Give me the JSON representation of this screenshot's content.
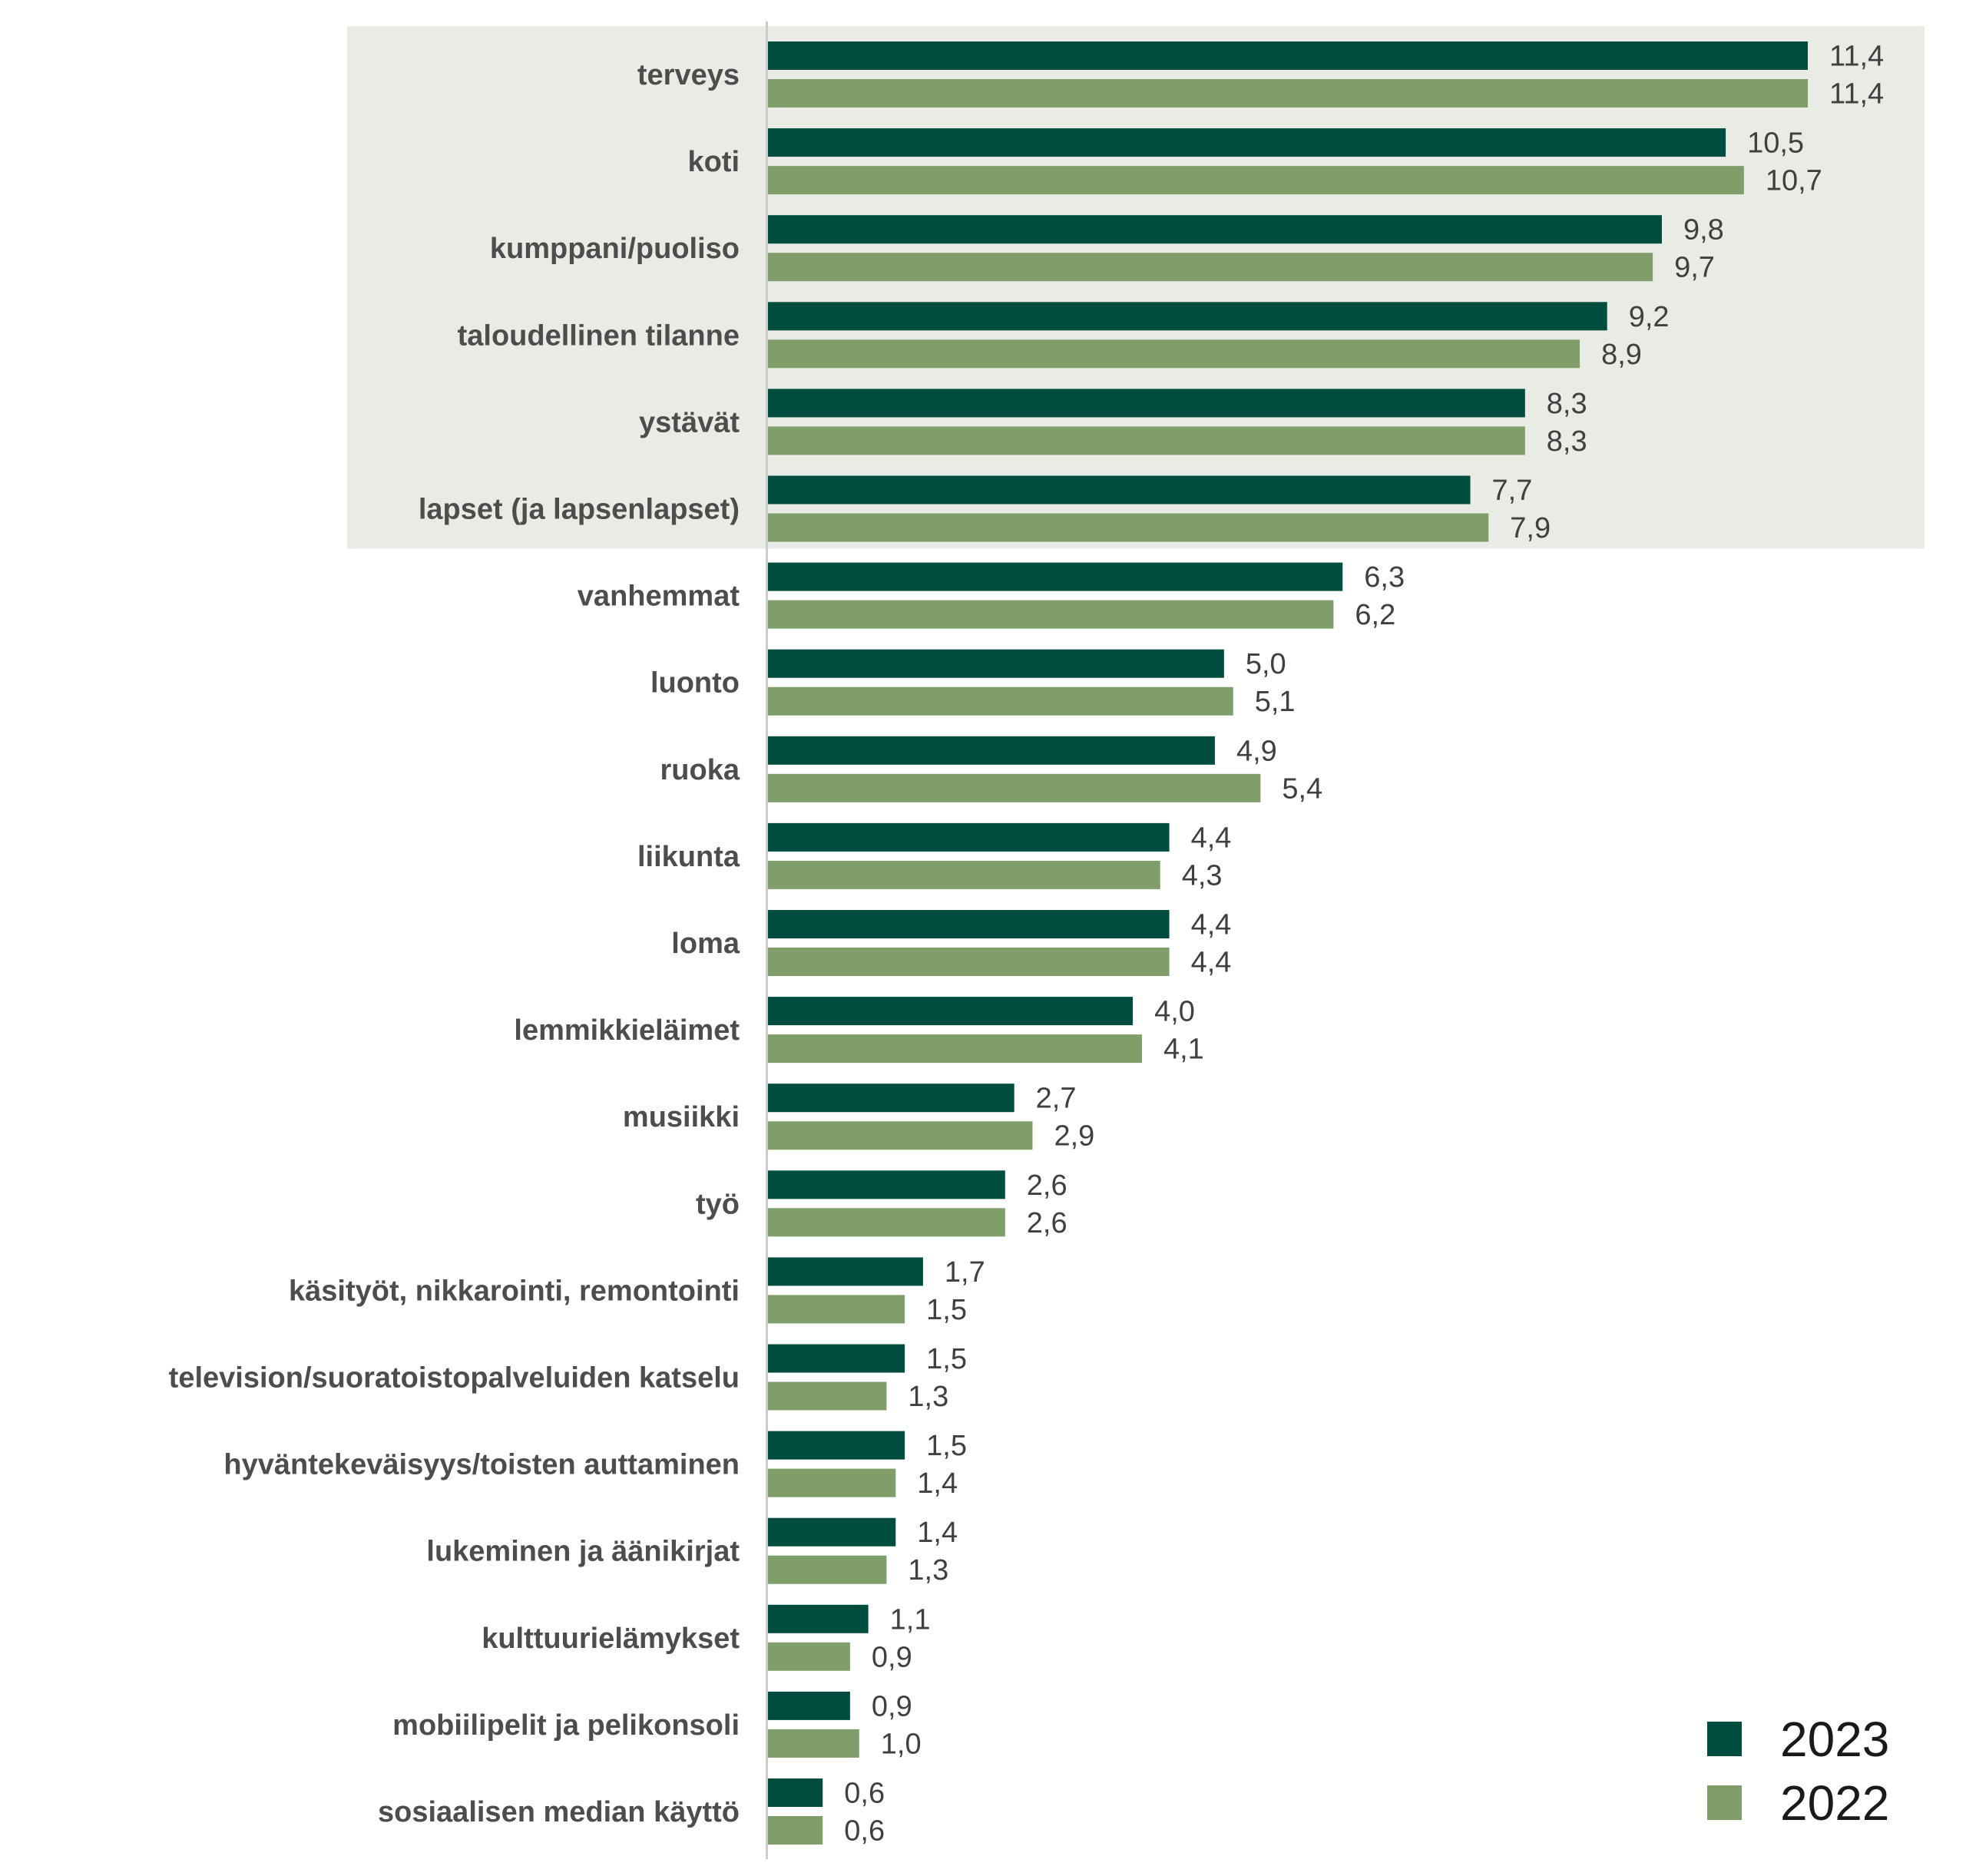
{
  "chart_data": {
    "type": "bar",
    "orientation": "horizontal",
    "categories": [
      "terveys",
      "koti",
      "kumppani/puoliso",
      "taloudellinen tilanne",
      "ystävät",
      "lapset (ja lapsenlapset)",
      "vanhemmat",
      "luonto",
      "ruoka",
      "liikunta",
      "loma",
      "lemmikkieläimet",
      "musiikki",
      "työ",
      "käsityöt, nikkarointi, remontointi",
      "television/suoratoistopalveluiden katselu",
      "hyväntekeväisyys/toisten auttaminen",
      "lukeminen ja äänikirjat",
      "kulttuurielämykset",
      "mobiilipelit ja pelikonsoli",
      "sosiaalisen median käyttö"
    ],
    "series": [
      {
        "name": "2023",
        "color": "#004d40",
        "values": [
          11.4,
          10.5,
          9.8,
          9.2,
          8.3,
          7.7,
          6.3,
          5.0,
          4.9,
          4.4,
          4.4,
          4.0,
          2.7,
          2.6,
          1.7,
          1.5,
          1.5,
          1.4,
          1.1,
          0.9,
          0.6
        ],
        "value_labels": [
          "11,4",
          "10,5",
          "9,8",
          "9,2",
          "8,3",
          "7,7",
          "6,3",
          "5,0",
          "4,9",
          "4,4",
          "4,4",
          "4,0",
          "2,7",
          "2,6",
          "1,7",
          "1,5",
          "1,5",
          "1,4",
          "1,1",
          "0,9",
          "0,6"
        ]
      },
      {
        "name": "2022",
        "color": "#7f9e6a",
        "values": [
          11.4,
          10.7,
          9.7,
          8.9,
          8.3,
          7.9,
          6.2,
          5.1,
          5.4,
          4.3,
          4.4,
          4.1,
          2.9,
          2.6,
          1.5,
          1.3,
          1.4,
          1.3,
          0.9,
          1.0,
          0.6
        ],
        "value_labels": [
          "11,4",
          "10,7",
          "9,7",
          "8,9",
          "8,3",
          "7,9",
          "6,2",
          "5,1",
          "5,4",
          "4,3",
          "4,4",
          "4,1",
          "2,9",
          "2,6",
          "1,5",
          "1,3",
          "1,4",
          "1,3",
          "0,9",
          "1,0",
          "0,6"
        ]
      }
    ],
    "xlim": [
      0,
      12.2
    ],
    "highlighted_categories": 6,
    "highlight_color": "#e8ece4",
    "axis_color": "#cccccc",
    "legend_position": "bottom-right",
    "grid": false,
    "title": "",
    "xlabel": "",
    "ylabel": ""
  }
}
